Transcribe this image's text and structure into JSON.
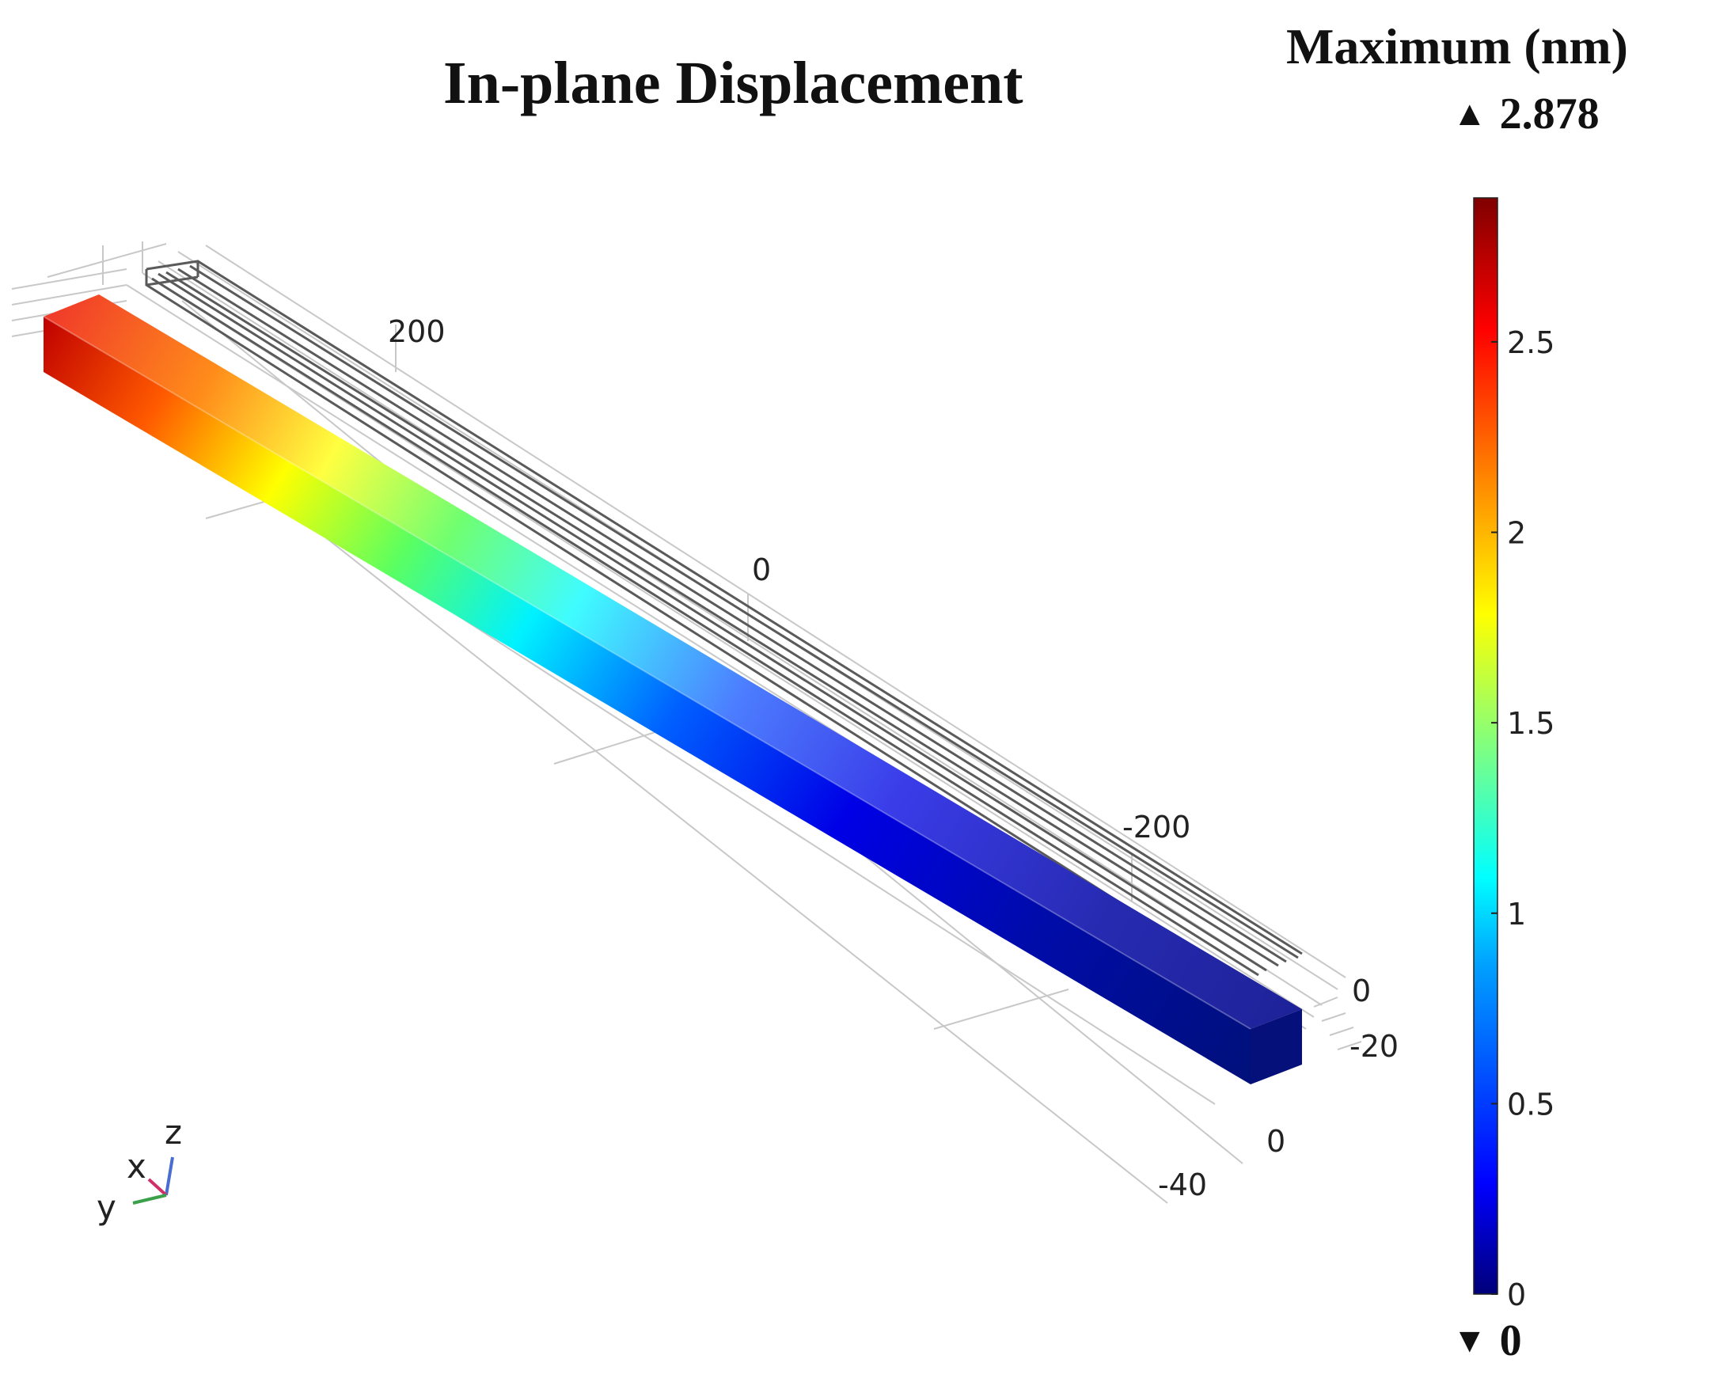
{
  "title": "In-plane Displacement",
  "legend": {
    "title": "Maximum (nm)",
    "max_value": "2.878",
    "min_value": "0",
    "max_marker": "▲",
    "min_marker": "▼",
    "colormap": "rainbow (blue to red)",
    "ticks": [
      "0",
      "0.5",
      "1",
      "1.5",
      "2",
      "2.5"
    ],
    "tick_values": [
      0,
      0.5,
      1,
      1.5,
      2,
      2.5
    ],
    "range": [
      0,
      2.878
    ]
  },
  "axes": {
    "long_axis_ticks": [
      "200",
      "0",
      "-200"
    ],
    "depth_axis_ticks": [
      "0",
      "-40"
    ],
    "height_axis_ticks": [
      "0",
      "-20"
    ]
  },
  "triad": {
    "x_label": "x",
    "y_label": "y",
    "z_label": "z"
  },
  "colors": {
    "red": "#d7191c",
    "orange": "#ff7f00",
    "yellow": "#ffff00",
    "cyan": "#00ffff",
    "blue": "#0000ff",
    "navy": "#000080",
    "undeformed_edges": "#555555"
  }
}
